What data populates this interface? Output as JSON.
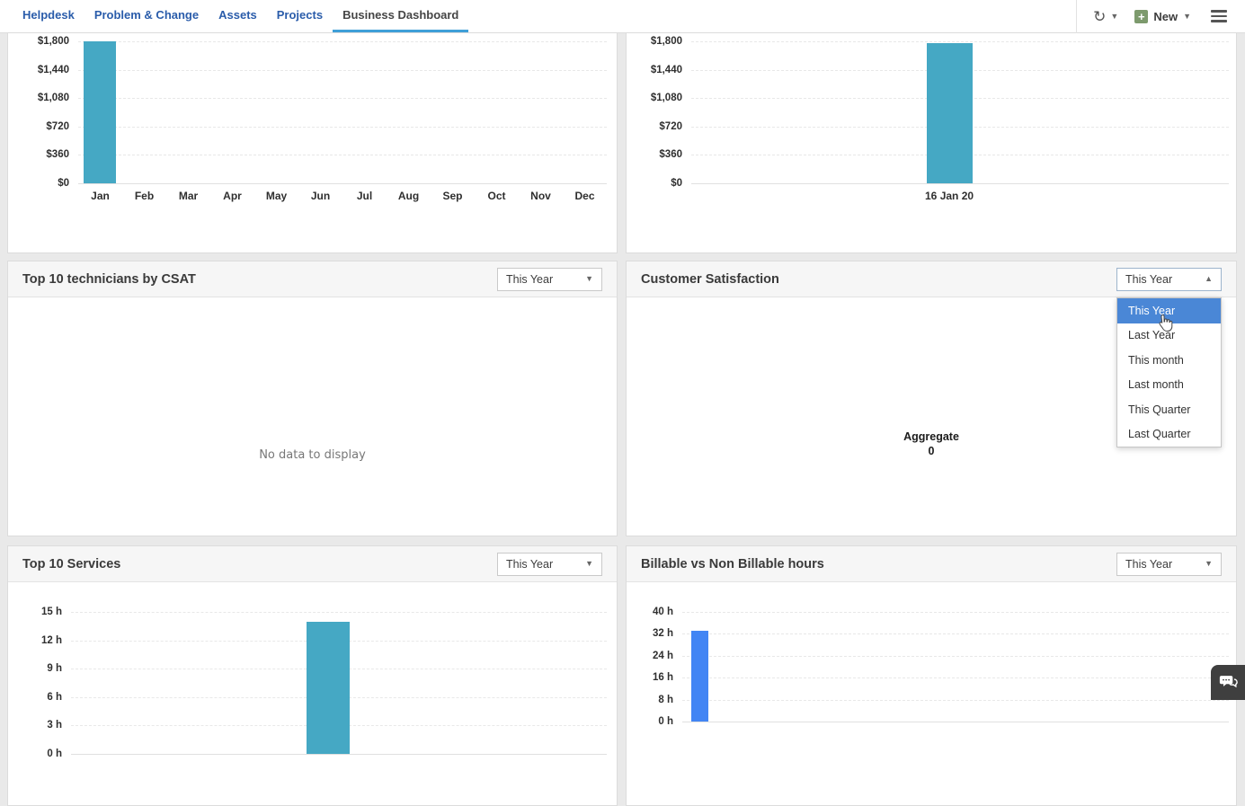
{
  "nav": {
    "tabs": [
      {
        "label": "Helpdesk"
      },
      {
        "label": "Problem & Change"
      },
      {
        "label": "Assets"
      },
      {
        "label": "Projects"
      },
      {
        "label": "Business Dashboard"
      }
    ],
    "active_tab": "Business Dashboard",
    "new_label": "New"
  },
  "icons": {
    "refresh": "↻",
    "caret_down": "▼",
    "caret_up": "▲",
    "plus": "+",
    "chat": "chat-bubbles",
    "cursor": "hand-pointer"
  },
  "colors": {
    "nav_link_blue": "#2a5caa",
    "active_tab_underline": "#3f9fd8",
    "bar_teal": "#45a8c4",
    "bar_blue": "#4285f4",
    "dropdown_highlight": "#4a87d6",
    "chat_widget_bg": "#3f3f3f"
  },
  "panels": {
    "top_technicians": {
      "title": "Top 10 technicians by CSAT",
      "filter": "This Year",
      "empty": "No data to display"
    },
    "customer_satisfaction": {
      "title": "Customer Satisfaction",
      "filter": "This Year",
      "aggregate_label": "Aggregate",
      "aggregate_value": "0"
    },
    "top_services": {
      "title": "Top 10 Services",
      "filter": "This Year"
    },
    "billable_hours": {
      "title": "Billable vs Non Billable hours",
      "filter": "This Year"
    }
  },
  "dropdown": {
    "value": "This Year",
    "options": [
      "This Year",
      "Last Year",
      "This month",
      "Last month",
      "This Quarter",
      "Last Quarter"
    ],
    "selected": "This Year"
  },
  "chart_data": [
    {
      "type": "bar",
      "title": "",
      "categories": [
        "Jan",
        "Feb",
        "Mar",
        "Apr",
        "May",
        "Jun",
        "Jul",
        "Aug",
        "Sep",
        "Oct",
        "Nov",
        "Dec"
      ],
      "values": [
        1800,
        0,
        0,
        0,
        0,
        0,
        0,
        0,
        0,
        0,
        0,
        0
      ],
      "xlabel": "",
      "ylabel": "",
      "ylim": [
        0,
        1800
      ],
      "y_ticks": [
        "$1,800",
        "$1,440",
        "$1,080",
        "$720",
        "$360",
        "$0"
      ],
      "grid": "dashed-horizontal",
      "bar_color": "#45a8c4"
    },
    {
      "type": "bar",
      "title": "",
      "categories": [
        "16 Jan 20"
      ],
      "values": [
        1780
      ],
      "xlabel": "",
      "ylabel": "",
      "ylim": [
        0,
        1800
      ],
      "y_ticks": [
        "$1,800",
        "$1,440",
        "$1,080",
        "$720",
        "$360",
        "$0"
      ],
      "grid": "dashed-horizontal",
      "bar_color": "#45a8c4"
    },
    {
      "type": "bar",
      "title": "Top 10 Services",
      "categories": [
        ""
      ],
      "values": [
        14
      ],
      "xlabel": "",
      "ylabel": "hours",
      "ylim": [
        0,
        15
      ],
      "y_ticks": [
        "15 h",
        "12 h",
        "9 h",
        "6 h",
        "3 h",
        "0 h"
      ],
      "grid": "dashed-horizontal",
      "bar_color": "#45a8c4"
    },
    {
      "type": "bar",
      "title": "Billable vs Non Billable hours",
      "categories": [
        ""
      ],
      "values": [
        33
      ],
      "xlabel": "",
      "ylabel": "hours",
      "ylim": [
        0,
        40
      ],
      "y_ticks": [
        "40 h",
        "32 h",
        "24 h",
        "16 h",
        "8 h",
        "0 h"
      ],
      "grid": "dashed-horizontal",
      "bar_color": "#4285f4"
    }
  ]
}
